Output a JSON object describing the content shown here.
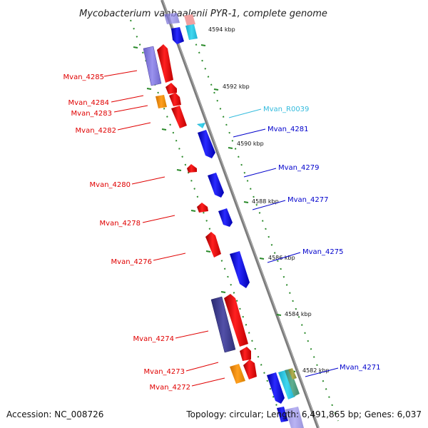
{
  "title": "Mycobacterium vanbaalenii PYR-1, complete genome",
  "footer": {
    "accession": "Accession: NC_008726",
    "summary": "Topology: circular; Length: 6,491,865 bp; Genes: 6,037"
  },
  "scale_labels": [
    "4594 kbp",
    "4592 kbp",
    "4590 kbp",
    "4588 kbp",
    "4586 kbp",
    "4584 kbp",
    "4582 kbp"
  ],
  "colors": {
    "cds_red": "#ff0000",
    "cds_blue": "#0000ff",
    "rna_cyan": "#33ccee",
    "label_red": "#e00000",
    "label_blue": "#0000cc",
    "label_cyan": "#33bbdd",
    "backbone": "#888888",
    "ruler": "#2a8a2a"
  },
  "left_labels": [
    "Mvan_4285",
    "Mvan_4284",
    "Mvan_4283",
    "Mvan_4282",
    "Mvan_4280",
    "Mvan_4278",
    "Mvan_4276",
    "Mvan_4274",
    "Mvan_4273",
    "Mvan_4272"
  ],
  "right_labels": [
    "Mvan_R0039",
    "Mvan_4281",
    "Mvan_4279",
    "Mvan_4277",
    "Mvan_4275",
    "Mvan_4271"
  ]
}
